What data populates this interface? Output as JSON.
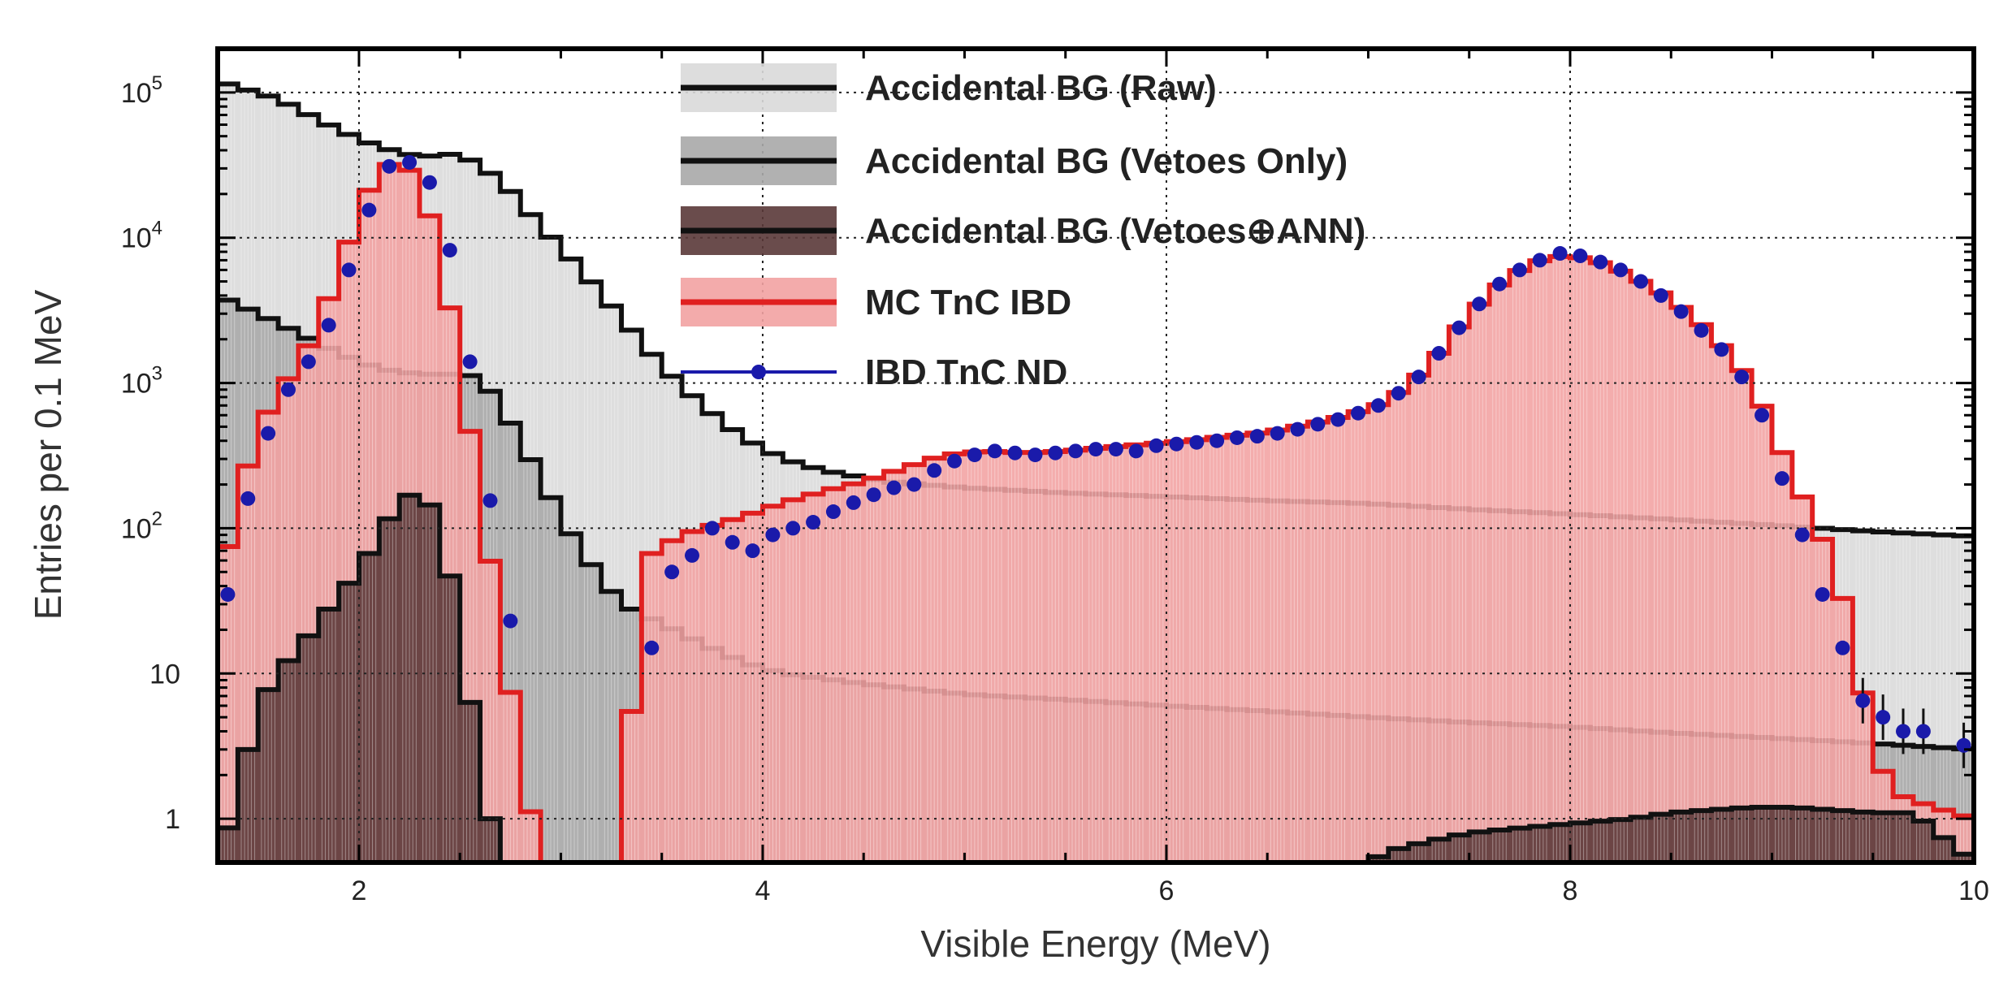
{
  "chart_data": {
    "type": "histogram",
    "xlabel": "Visible Energy (MeV)",
    "ylabel": "Entries per 0.1 MeV",
    "xlim": [
      1.3,
      10.0
    ],
    "ylim": [
      0.5,
      200000
    ],
    "yscale": "log",
    "grid": true,
    "bin_width": 0.1,
    "legend_position": "top-center",
    "x_ticks": [
      {
        "value": 2,
        "label": "2"
      },
      {
        "value": 4,
        "label": "4"
      },
      {
        "value": 6,
        "label": "6"
      },
      {
        "value": 8,
        "label": "8"
      },
      {
        "value": 10,
        "label": "10"
      }
    ],
    "y_ticks": [
      {
        "value": 1,
        "label": "1",
        "sup": ""
      },
      {
        "value": 10,
        "label": "10",
        "sup": ""
      },
      {
        "value": 100,
        "label": "10",
        "sup": "2"
      },
      {
        "value": 1000,
        "label": "10",
        "sup": "3"
      },
      {
        "value": 10000,
        "label": "10",
        "sup": "4"
      },
      {
        "value": 100000,
        "label": "10",
        "sup": "5"
      }
    ],
    "series": [
      {
        "name": "Accidental BG (Raw)",
        "style": "filled-step",
        "fill": "#d9d9d9",
        "stroke": "#111111",
        "points": [
          [
            1.3,
            120000
          ],
          [
            1.6,
            90000
          ],
          [
            1.9,
            55000
          ],
          [
            2.1,
            42000
          ],
          [
            2.3,
            36000
          ],
          [
            2.5,
            38000
          ],
          [
            2.7,
            25000
          ],
          [
            2.9,
            12000
          ],
          [
            3.1,
            6000
          ],
          [
            3.3,
            2800
          ],
          [
            3.5,
            1300
          ],
          [
            3.7,
            700
          ],
          [
            3.9,
            420
          ],
          [
            4.1,
            300
          ],
          [
            4.3,
            250
          ],
          [
            4.6,
            210
          ],
          [
            5.0,
            190
          ],
          [
            5.5,
            175
          ],
          [
            6.0,
            165
          ],
          [
            6.5,
            155
          ],
          [
            7.0,
            148
          ],
          [
            7.5,
            135
          ],
          [
            8.0,
            125
          ],
          [
            8.5,
            115
          ],
          [
            9.0,
            105
          ],
          [
            9.5,
            95
          ],
          [
            10.0,
            88
          ]
        ]
      },
      {
        "name": "Accidental BG (Vetoes Only)",
        "style": "filled-step",
        "fill": "#a9a9a9",
        "stroke": "#111111",
        "points": [
          [
            1.3,
            4000
          ],
          [
            1.5,
            3000
          ],
          [
            1.7,
            2200
          ],
          [
            1.9,
            1600
          ],
          [
            2.1,
            1250
          ],
          [
            2.3,
            1150
          ],
          [
            2.5,
            1150
          ],
          [
            2.6,
            1100
          ],
          [
            2.7,
            700
          ],
          [
            2.8,
            400
          ],
          [
            2.9,
            220
          ],
          [
            3.0,
            120
          ],
          [
            3.1,
            70
          ],
          [
            3.2,
            45
          ],
          [
            3.3,
            30
          ],
          [
            3.5,
            22
          ],
          [
            3.7,
            16
          ],
          [
            3.9,
            12
          ],
          [
            4.1,
            10
          ],
          [
            4.5,
            8.5
          ],
          [
            5.0,
            7.2
          ],
          [
            5.5,
            6.6
          ],
          [
            6.0,
            6.0
          ],
          [
            6.5,
            5.5
          ],
          [
            7.0,
            5.0
          ],
          [
            7.5,
            4.6
          ],
          [
            8.0,
            4.3
          ],
          [
            8.5,
            3.9
          ],
          [
            9.0,
            3.6
          ],
          [
            9.5,
            3.3
          ],
          [
            10.0,
            3.0
          ]
        ]
      },
      {
        "name": "MC TnC IBD",
        "style": "filled-step",
        "fill": "#f2a2a2",
        "stroke": "#e02020",
        "points": [
          [
            1.3,
            35
          ],
          [
            1.4,
            160
          ],
          [
            1.5,
            450
          ],
          [
            1.6,
            880
          ],
          [
            1.7,
            1300
          ],
          [
            1.8,
            2500
          ],
          [
            1.9,
            5800
          ],
          [
            2.0,
            15000
          ],
          [
            2.1,
            30000
          ],
          [
            2.2,
            34000
          ],
          [
            2.3,
            25000
          ],
          [
            2.4,
            8000
          ],
          [
            2.5,
            1350
          ],
          [
            2.6,
            160
          ],
          [
            2.7,
            22
          ],
          [
            2.8,
            2.5
          ],
          [
            2.9,
            0.5
          ],
          [
            3.3,
            0.5
          ],
          [
            3.4,
            60
          ],
          [
            3.5,
            75
          ],
          [
            3.6,
            90
          ],
          [
            3.7,
            100
          ],
          [
            3.9,
            120
          ],
          [
            4.1,
            150
          ],
          [
            4.3,
            180
          ],
          [
            4.5,
            210
          ],
          [
            4.7,
            260
          ],
          [
            4.9,
            320
          ],
          [
            5.1,
            340
          ],
          [
            5.3,
            330
          ],
          [
            5.5,
            340
          ],
          [
            5.7,
            360
          ],
          [
            5.9,
            380
          ],
          [
            6.1,
            400
          ],
          [
            6.3,
            430
          ],
          [
            6.5,
            460
          ],
          [
            6.7,
            520
          ],
          [
            6.9,
            600
          ],
          [
            7.1,
            750
          ],
          [
            7.3,
            1300
          ],
          [
            7.5,
            3000
          ],
          [
            7.7,
            5500
          ],
          [
            7.9,
            7500
          ],
          [
            8.1,
            7200
          ],
          [
            8.3,
            5500
          ],
          [
            8.5,
            3800
          ],
          [
            8.7,
            2200
          ],
          [
            8.9,
            1000
          ],
          [
            9.1,
            230
          ],
          [
            9.3,
            60
          ],
          [
            9.4,
            18
          ],
          [
            9.5,
            3
          ],
          [
            9.6,
            1.5
          ],
          [
            9.8,
            1.2
          ],
          [
            10.0,
            1.0
          ]
        ]
      },
      {
        "name": "Accidental BG (Vetoes⊕ANN)",
        "style": "filled-step",
        "fill": "#5a3838",
        "stroke": "#111111",
        "points": [
          [
            1.3,
            0.5
          ],
          [
            1.4,
            1.5
          ],
          [
            1.5,
            6
          ],
          [
            1.6,
            10
          ],
          [
            1.7,
            15
          ],
          [
            1.8,
            22
          ],
          [
            1.9,
            35
          ],
          [
            2.0,
            50
          ],
          [
            2.1,
            90
          ],
          [
            2.2,
            150
          ],
          [
            2.3,
            190
          ],
          [
            2.4,
            110
          ],
          [
            2.5,
            20
          ],
          [
            2.6,
            2
          ],
          [
            2.7,
            0.5
          ],
          [
            7.0,
            0.5
          ],
          [
            7.1,
            0.6
          ],
          [
            7.3,
            0.7
          ],
          [
            7.5,
            0.8
          ],
          [
            7.7,
            0.85
          ],
          [
            7.9,
            0.9
          ],
          [
            8.1,
            0.95
          ],
          [
            8.3,
            1.0
          ],
          [
            8.5,
            1.1
          ],
          [
            8.7,
            1.15
          ],
          [
            8.9,
            1.2
          ],
          [
            9.1,
            1.2
          ],
          [
            9.3,
            1.15
          ],
          [
            9.5,
            1.1
          ],
          [
            9.7,
            1.1
          ],
          [
            10.0,
            0.5
          ]
        ]
      },
      {
        "name": "IBD TnC ND",
        "style": "markers",
        "color": "#1a1aaa",
        "points": [
          [
            1.35,
            35
          ],
          [
            1.45,
            160
          ],
          [
            1.55,
            450
          ],
          [
            1.65,
            900
          ],
          [
            1.75,
            1400
          ],
          [
            1.85,
            2500
          ],
          [
            1.95,
            6000
          ],
          [
            2.05,
            15500
          ],
          [
            2.15,
            31000
          ],
          [
            2.25,
            33000
          ],
          [
            2.35,
            24000
          ],
          [
            2.45,
            8200
          ],
          [
            2.55,
            1400
          ],
          [
            2.65,
            155
          ],
          [
            2.75,
            23
          ],
          [
            3.45,
            15
          ],
          [
            3.55,
            50
          ],
          [
            3.65,
            65
          ],
          [
            3.75,
            100
          ],
          [
            3.85,
            80
          ],
          [
            3.95,
            70
          ],
          [
            4.05,
            90
          ],
          [
            4.15,
            100
          ],
          [
            4.25,
            110
          ],
          [
            4.35,
            130
          ],
          [
            4.45,
            150
          ],
          [
            4.55,
            170
          ],
          [
            4.65,
            190
          ],
          [
            4.75,
            200
          ],
          [
            4.85,
            250
          ],
          [
            4.95,
            290
          ],
          [
            5.05,
            320
          ],
          [
            5.15,
            340
          ],
          [
            5.25,
            330
          ],
          [
            5.35,
            320
          ],
          [
            5.45,
            330
          ],
          [
            5.55,
            340
          ],
          [
            5.65,
            350
          ],
          [
            5.75,
            350
          ],
          [
            5.85,
            340
          ],
          [
            5.95,
            370
          ],
          [
            6.05,
            380
          ],
          [
            6.15,
            390
          ],
          [
            6.25,
            400
          ],
          [
            6.35,
            420
          ],
          [
            6.45,
            430
          ],
          [
            6.55,
            450
          ],
          [
            6.65,
            480
          ],
          [
            6.75,
            520
          ],
          [
            6.85,
            560
          ],
          [
            6.95,
            620
          ],
          [
            7.05,
            700
          ],
          [
            7.15,
            850
          ],
          [
            7.25,
            1100
          ],
          [
            7.35,
            1600
          ],
          [
            7.45,
            2400
          ],
          [
            7.55,
            3500
          ],
          [
            7.65,
            4800
          ],
          [
            7.75,
            6000
          ],
          [
            7.85,
            7000
          ],
          [
            7.95,
            7800
          ],
          [
            8.05,
            7500
          ],
          [
            8.15,
            6800
          ],
          [
            8.25,
            6000
          ],
          [
            8.35,
            5000
          ],
          [
            8.45,
            4000
          ],
          [
            8.55,
            3100
          ],
          [
            8.65,
            2300
          ],
          [
            8.75,
            1700
          ],
          [
            8.85,
            1100
          ],
          [
            8.95,
            600
          ],
          [
            9.05,
            220
          ],
          [
            9.15,
            90
          ],
          [
            9.25,
            35
          ],
          [
            9.35,
            15
          ],
          [
            9.45,
            6.5
          ],
          [
            9.55,
            5
          ],
          [
            9.65,
            4
          ],
          [
            9.75,
            4
          ],
          [
            9.95,
            3.2
          ]
        ]
      }
    ]
  }
}
